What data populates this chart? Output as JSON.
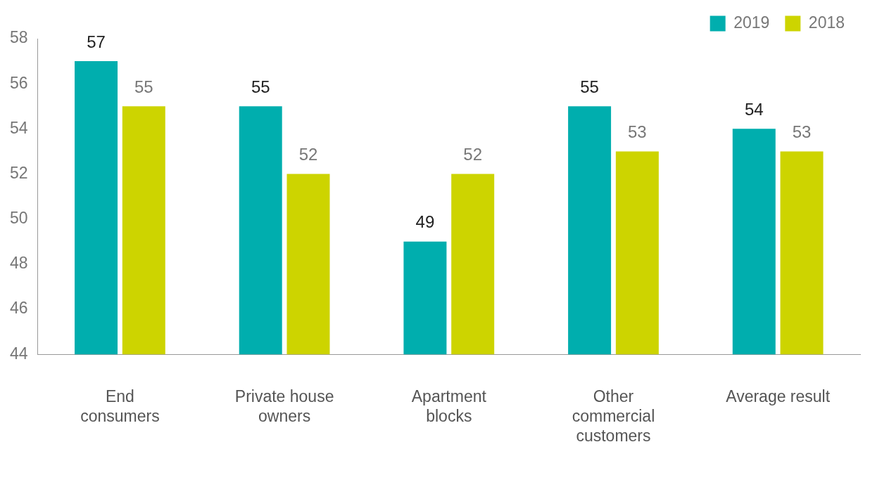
{
  "chart_data": {
    "type": "bar",
    "categories": [
      "End consumers",
      "Private house owners",
      "Apartment blocks",
      "Other commercial customers",
      "Average result"
    ],
    "series": [
      {
        "name": "2019",
        "color": "#00aeae",
        "values": [
          57,
          55,
          49,
          55,
          54
        ]
      },
      {
        "name": "2018",
        "color": "#cdd400",
        "values": [
          55,
          52,
          52,
          53,
          53
        ]
      }
    ],
    "ylim": [
      44,
      58
    ],
    "yticks": [
      44,
      46,
      48,
      50,
      52,
      54,
      56,
      58
    ],
    "grid": false,
    "legend": "top right",
    "data_labels": true
  }
}
